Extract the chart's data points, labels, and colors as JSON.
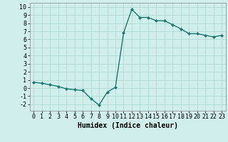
{
  "x": [
    0,
    1,
    2,
    3,
    4,
    5,
    6,
    7,
    8,
    9,
    10,
    11,
    12,
    13,
    14,
    15,
    16,
    17,
    18,
    19,
    20,
    21,
    22,
    23
  ],
  "y": [
    0.7,
    0.6,
    0.4,
    0.2,
    -0.1,
    -0.2,
    -0.3,
    -1.3,
    -2.1,
    -0.5,
    0.1,
    6.8,
    9.7,
    8.7,
    8.7,
    8.3,
    8.3,
    7.8,
    7.3,
    6.7,
    6.7,
    6.5,
    6.3,
    6.5
  ],
  "line_color": "#1a7a6e",
  "marker": "D",
  "marker_size": 2.0,
  "bg_color": "#d0eeec",
  "grid_color": "#b0d8d4",
  "xlabel": "Humidex (Indice chaleur)",
  "ylim": [
    -2.8,
    10.5
  ],
  "xlim": [
    -0.5,
    23.5
  ],
  "yticks": [
    -2,
    -1,
    0,
    1,
    2,
    3,
    4,
    5,
    6,
    7,
    8,
    9,
    10
  ],
  "xticks": [
    0,
    1,
    2,
    3,
    4,
    5,
    6,
    7,
    8,
    9,
    10,
    11,
    12,
    13,
    14,
    15,
    16,
    17,
    18,
    19,
    20,
    21,
    22,
    23
  ],
  "xlabel_fontsize": 7,
  "tick_fontsize": 6,
  "linewidth": 1.0,
  "spine_color": "#888888"
}
